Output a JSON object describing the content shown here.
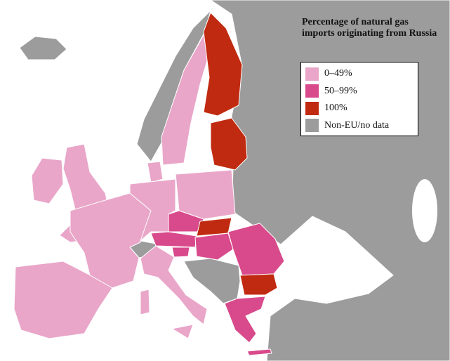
{
  "title": "Percentage of natural gas imports originating from Russia",
  "legend": [
    {
      "label": "0–49%",
      "color": "#e9a6c9"
    },
    {
      "label": "50–99%",
      "color": "#d84a8b"
    },
    {
      "label": "100%",
      "color": "#c02a10"
    },
    {
      "label": "Non-EU/no data",
      "color": "#9c9c9c"
    }
  ]
}
